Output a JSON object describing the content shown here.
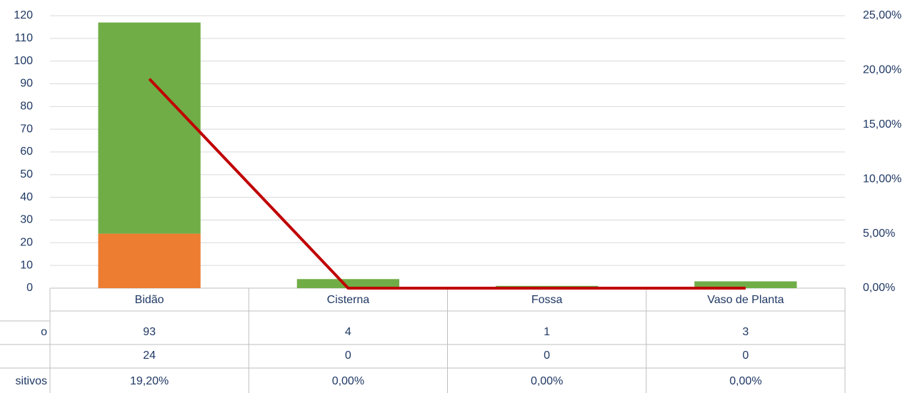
{
  "chart_data": {
    "type": "bar",
    "categories": [
      "Bidão",
      "Cisterna",
      "Fossa",
      "Vaso de Planta"
    ],
    "series": [
      {
        "name": "o",
        "color": "#70ad47",
        "values": [
          93,
          4,
          1,
          3
        ]
      },
      {
        "name": null,
        "color": "#ed7d31",
        "values": [
          24,
          0,
          0,
          0
        ]
      },
      {
        "name": "sitivos",
        "color": "#c00000",
        "type": "line",
        "axis": "y2",
        "values": [
          19.2,
          0,
          0,
          0
        ],
        "value_labels": [
          "19,20%",
          "0,00%",
          "0,00%",
          "0,00%"
        ]
      }
    ],
    "stack_order": [
      1,
      0
    ],
    "ylim": [
      0,
      120
    ],
    "yticks": [
      0,
      10,
      20,
      30,
      40,
      50,
      60,
      70,
      80,
      90,
      100,
      110,
      120
    ],
    "y2lim": [
      0,
      25
    ],
    "y2ticks": [
      {
        "value": 0,
        "label": "0,00%"
      },
      {
        "value": 5,
        "label": "5,00%"
      },
      {
        "value": 10,
        "label": "10,00%"
      },
      {
        "value": 15,
        "label": "15,00%"
      },
      {
        "value": 20,
        "label": "20,00%"
      },
      {
        "value": 25,
        "label": "25,00%"
      }
    ],
    "grid": true,
    "data_table": true
  }
}
